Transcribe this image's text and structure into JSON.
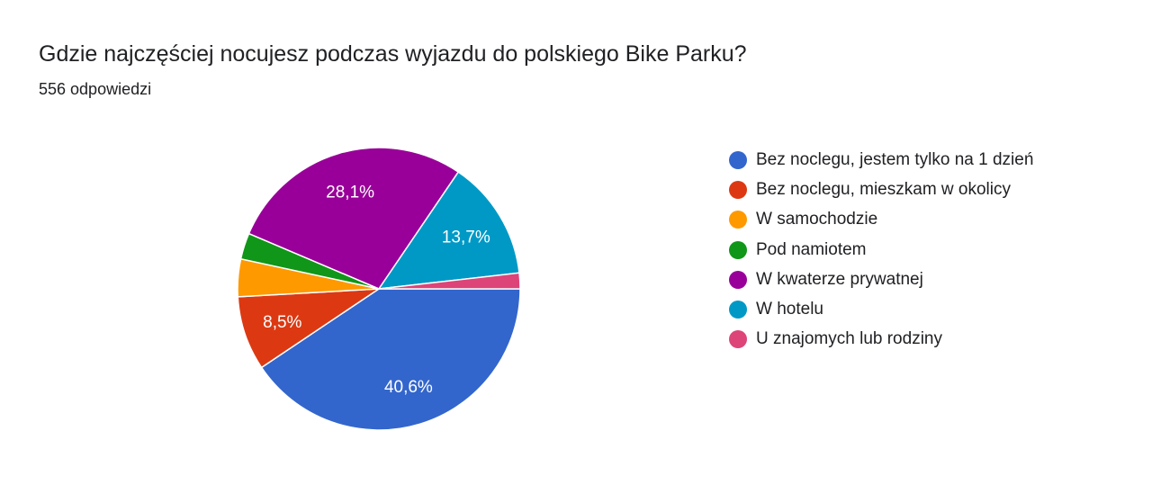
{
  "header": {
    "title": "Gdzie najczęściej nocujesz podczas wyjazdu do polskiego Bike Parku?",
    "response_count": "556 odpowiedzi"
  },
  "chart_data": {
    "type": "pie",
    "categories": [
      "Bez noclegu, jestem tylko na 1 dzień",
      "Bez noclegu, mieszkam w okolicy",
      "W samochodzie",
      "Pod namiotem",
      "W kwaterze prywatnej",
      "W hotelu",
      "U znajomych lub rodziny"
    ],
    "values": [
      40.6,
      8.5,
      4.3,
      3.0,
      28.1,
      13.7,
      1.8
    ],
    "slice_labels": [
      "40,6%",
      "8,5%",
      "",
      "",
      "28,1%",
      "13,7%",
      ""
    ],
    "colors": [
      "#3366cc",
      "#dc3912",
      "#ff9900",
      "#109618",
      "#990099",
      "#0099c6",
      "#dd4477"
    ],
    "legend_position": "right"
  }
}
